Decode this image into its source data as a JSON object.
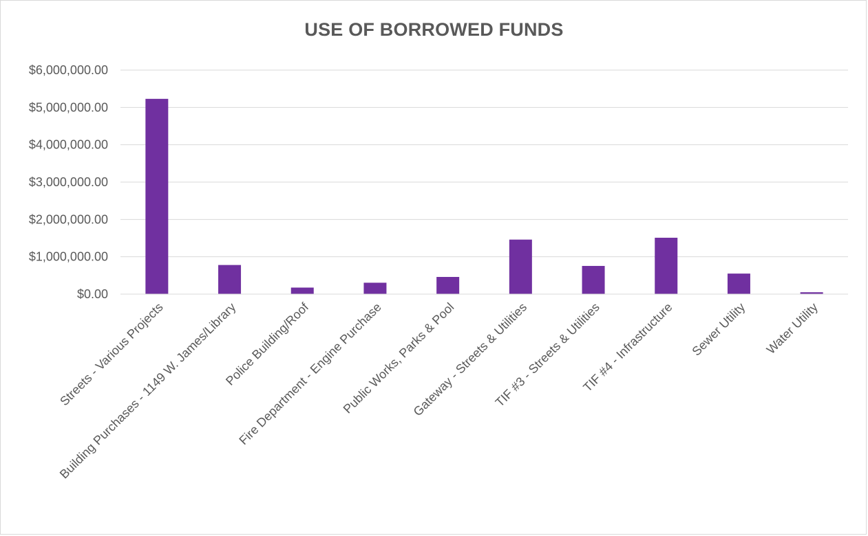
{
  "chart_data": {
    "type": "bar",
    "title": "USE OF BORROWED FUNDS",
    "xlabel": "",
    "ylabel": "",
    "ylim": [
      0,
      6000000
    ],
    "yticks": [
      0,
      1000000,
      2000000,
      3000000,
      4000000,
      5000000,
      6000000
    ],
    "ytick_labels": [
      "$0.00",
      "$1,000,000.00",
      "$2,000,000.00",
      "$3,000,000.00",
      "$4,000,000.00",
      "$5,000,000.00",
      "$6,000,000.00"
    ],
    "grid": true,
    "legend": "none",
    "bar_color": "#7030a0",
    "categories": [
      "Streets - Various Projects",
      "Building Purchases - 1149 W. James/Library",
      "Police Building/Roof",
      "Fire Department - Engine Purchase",
      "Public Works, Parks & Pool",
      "Gateway - Streets & Utilities",
      "TIF #3 - Streets & Utilities",
      "TIF #4 - Infrastructure",
      "Sewer Utility",
      "Water Utility"
    ],
    "values": [
      5230000,
      780000,
      175000,
      305000,
      460000,
      1460000,
      755000,
      1510000,
      550000,
      50000
    ]
  }
}
